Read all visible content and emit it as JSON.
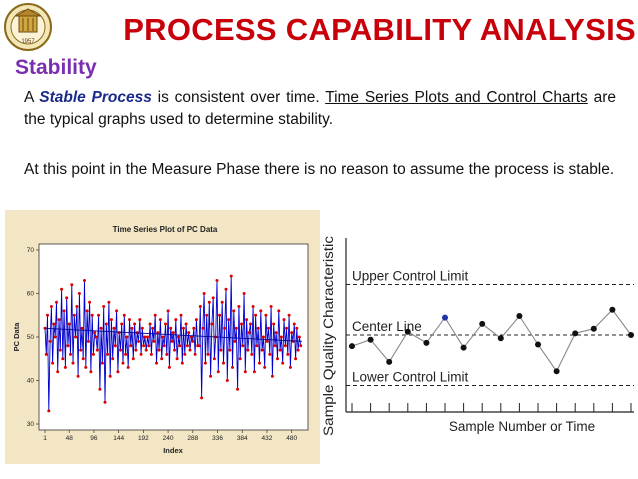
{
  "header": {
    "title": "PROCESS CAPABILITY ANALYSIS",
    "section": "Stability",
    "logo_year": "1957"
  },
  "body": {
    "p1_a": "A ",
    "p1_em": "Stable Process",
    "p1_b": " is consistent over time.  ",
    "p1_link": "Time Series Plots and Control Charts",
    "p1_c": " are the typical graphs used to determine stability.",
    "p2": "At this point in the Measure Phase there is no reason to assume the process is stable."
  },
  "colors": {
    "title": "#c8000a",
    "section": "#7b2fb0",
    "series_line": "#0000cc",
    "series_points": "#dd0000"
  },
  "chart_data": [
    {
      "type": "line",
      "title": "Time Series Plot of PC Data",
      "xlabel": "Index",
      "ylabel": "PC Data",
      "xlim": [
        1,
        500
      ],
      "ylim": [
        30,
        70
      ],
      "x_ticks": [
        1,
        48,
        96,
        144,
        192,
        240,
        288,
        336,
        384,
        432,
        480
      ],
      "y_ticks": [
        30,
        40,
        50,
        60,
        70
      ],
      "n_points": 500,
      "trend": [
        [
          1,
          52
        ],
        [
          500,
          49
        ]
      ],
      "series": [
        {
          "values_by_segment": [
            {
              "x_range": [
                1,
                100
              ],
              "values": [
                52,
                46,
                55,
                33,
                49,
                57,
                44,
                53,
                50,
                58,
                42,
                54,
                47,
                61,
                45,
                56,
                43,
                59,
                48,
                53,
                46,
                62,
                44,
                55,
                50,
                57,
                41,
                60,
                47,
                52,
                45,
                63,
                43,
                56,
                49,
                58,
                42,
                55,
                46,
                51
              ]
            },
            {
              "x_range": [
                100,
                200
              ],
              "values": [
                50,
                47,
                55,
                38,
                52,
                44,
                57,
                35,
                53,
                46,
                58,
                41,
                54,
                45,
                52,
                48,
                56,
                42,
                51,
                47,
                53,
                44,
                55,
                46,
                50,
                43,
                54,
                48,
                52,
                45,
                53,
                47,
                51,
                49,
                54,
                46,
                52,
                48,
                50,
                47
              ]
            },
            {
              "x_range": [
                200,
                300
              ],
              "values": [
                50,
                48,
                53,
                46,
                52,
                49,
                55,
                44,
                51,
                47,
                54,
                45,
                50,
                48,
                53,
                46,
                56,
                43,
                52,
                49,
                51,
                47,
                54,
                45,
                50,
                48,
                55,
                44,
                52,
                46,
                53,
                48,
                51,
                47,
                50,
                49,
                52,
                46,
                54,
                48
              ]
            },
            {
              "x_range": [
                300,
                400
              ],
              "values": [
                48,
                57,
                36,
                52,
                60,
                44,
                55,
                46,
                58,
                41,
                53,
                59,
                45,
                50,
                63,
                42,
                55,
                47,
                58,
                44,
                52,
                61,
                40,
                54,
                47,
                64,
                43,
                56,
                49,
                52,
                38,
                57,
                45,
                53,
                48,
                60,
                42,
                54,
                47,
                51
              ]
            },
            {
              "x_range": [
                400,
                500
              ],
              "values": [
                53,
                46,
                57,
                42,
                55,
                48,
                52,
                44,
                56,
                47,
                50,
                43,
                55,
                49,
                52,
                46,
                57,
                41,
                53,
                48,
                51,
                45,
                56,
                47,
                50,
                44,
                54,
                48,
                52,
                46,
                55,
                43,
                51,
                49,
                53,
                45,
                52,
                47,
                50,
                48
              ]
            }
          ]
        }
      ]
    },
    {
      "type": "line",
      "xlabel": "Sample Number or Time",
      "ylabel": "Sample Quality Characteristic",
      "reference_lines": [
        {
          "label": "Upper Control Limit",
          "value": 82
        },
        {
          "label": "Center Line",
          "value": 50
        },
        {
          "label": "Lower Control Limit",
          "value": 18
        }
      ],
      "ylim": [
        0,
        100
      ],
      "xlim": [
        0,
        16
      ],
      "x": [
        1,
        2,
        3,
        4,
        5,
        6,
        7,
        8,
        9,
        10,
        11,
        12,
        13,
        14,
        15,
        16
      ],
      "values": [
        43,
        47,
        33,
        52,
        45,
        61,
        42,
        57,
        48,
        62,
        44,
        27,
        51,
        54,
        66,
        50
      ],
      "highlight_index": 5
    }
  ]
}
